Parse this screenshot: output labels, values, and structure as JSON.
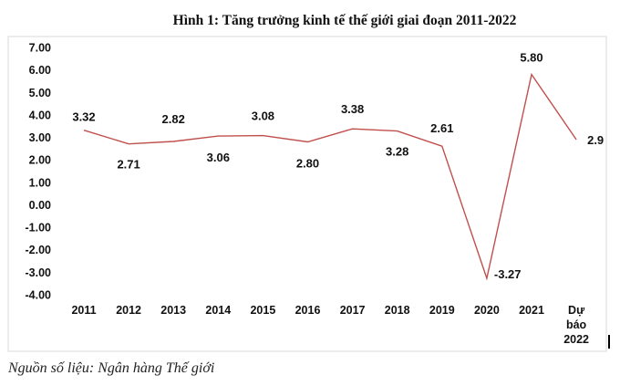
{
  "chart_data": {
    "type": "line",
    "title": "Hình 1: Tăng trưởng kinh tế thế giới giai đoạn 2011-2022",
    "categories": [
      "2011",
      "2012",
      "2013",
      "2014",
      "2015",
      "2016",
      "2017",
      "2018",
      "2019",
      "2020",
      "2021",
      [
        "Dự",
        "báo",
        "2022"
      ]
    ],
    "series": [
      {
        "values": [
          3.32,
          2.71,
          2.82,
          3.06,
          3.08,
          2.8,
          3.38,
          3.28,
          2.61,
          -3.27,
          5.8,
          2.9
        ],
        "data_labels": [
          "3.32",
          "2.71",
          "2.82",
          "3.06",
          "3.08",
          "2.80",
          "3.38",
          "3.28",
          "2.61",
          "-3.27",
          "5.80",
          "2.9"
        ]
      }
    ],
    "ylim": [
      -4,
      7
    ],
    "yticks": [
      "7.00",
      "6.00",
      "5.00",
      "4.00",
      "3.00",
      "2.00",
      "1.00",
      "0.00",
      "-1.00",
      "-2.00",
      "-3.00",
      "-4.00"
    ],
    "grid": false,
    "legend": "none",
    "line_color": "#c0504d",
    "xlabel": "",
    "ylabel": ""
  },
  "source": "Nguồn số liệu: Ngân hàng Thế giới"
}
